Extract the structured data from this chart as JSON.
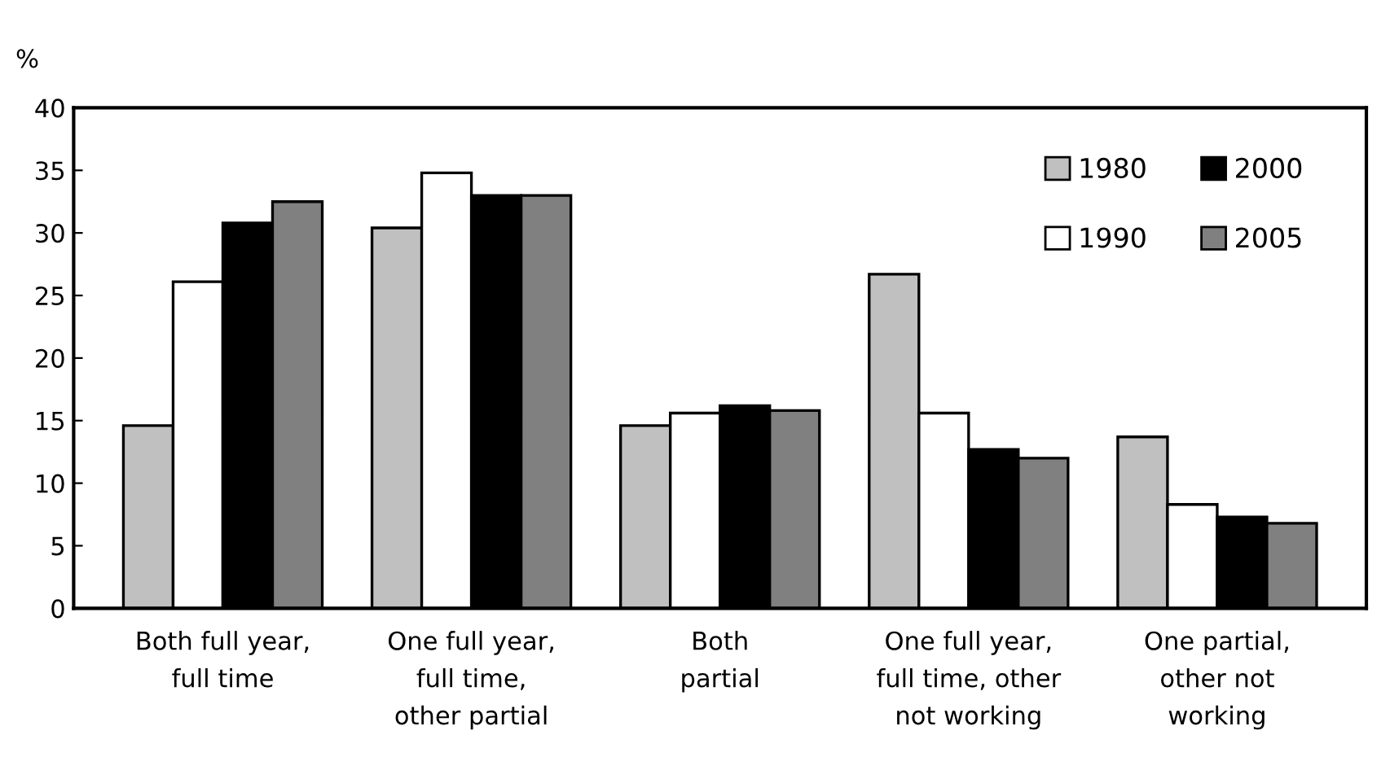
{
  "chart_data": {
    "type": "bar",
    "ylabel": "%",
    "categories": [
      "Both full year,\nfull time",
      "One full year,\nfull time,\nother partial",
      "Both\npartial",
      "One full year,\nfull time, other\nnot working",
      "One partial,\nother not\nworking"
    ],
    "series": [
      {
        "name": "1980",
        "color": "#c0c0c0",
        "values": [
          14.6,
          30.4,
          14.6,
          26.7,
          13.7
        ]
      },
      {
        "name": "1990",
        "color": "#ffffff",
        "values": [
          26.1,
          34.8,
          15.6,
          15.6,
          8.3
        ]
      },
      {
        "name": "2000",
        "color": "#000000",
        "values": [
          30.8,
          33.0,
          16.2,
          12.7,
          7.3
        ]
      },
      {
        "name": "2005",
        "color": "#808080",
        "values": [
          32.5,
          33.0,
          15.8,
          12.0,
          6.8
        ]
      }
    ],
    "ylim": [
      0,
      40
    ],
    "yticks": [
      0,
      5,
      10,
      15,
      20,
      25,
      30,
      35,
      40
    ],
    "grid": false,
    "legend": "top right"
  }
}
